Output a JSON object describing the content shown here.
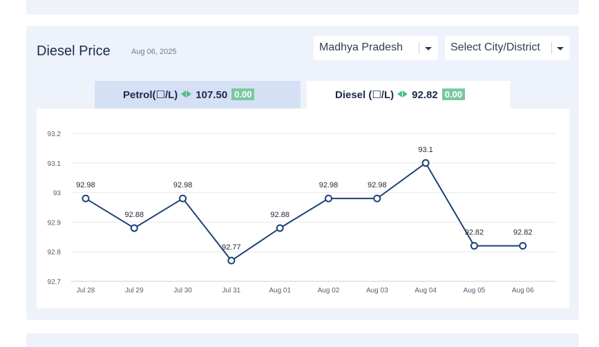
{
  "header": {
    "title": "Diesel Price",
    "date": "Aug 06, 2025"
  },
  "filters": {
    "state_selected": "Madhya Pradesh",
    "city_placeholder": "Select City/District"
  },
  "tabs": {
    "petrol": {
      "label": "Petrol(☐/L)",
      "price": "107.50",
      "change": "0.00"
    },
    "diesel": {
      "label": "Diesel (☐/L)",
      "price": "92.82",
      "change": "0.00"
    }
  },
  "colors": {
    "line": "#1e3f73",
    "grid": "#e6e8ec",
    "change_badge": "#7ac8a0",
    "arrows": "#4cbc8a"
  },
  "icons": {
    "dropdown": "chevron-down-icon",
    "price_change": "left-right-arrows-icon"
  },
  "chart_data": {
    "type": "line",
    "categories": [
      "Jul 28",
      "Jul 29",
      "Jul 30",
      "Jul 31",
      "Aug 01",
      "Aug 02",
      "Aug 03",
      "Aug 04",
      "Aug 05",
      "Aug 06"
    ],
    "values": [
      92.98,
      92.88,
      92.98,
      92.77,
      92.88,
      92.98,
      92.98,
      93.1,
      92.82,
      92.82
    ],
    "data_labels": [
      "92.98",
      "92.88",
      "92.98",
      "92.77",
      "92.88",
      "92.98",
      "92.98",
      "93.1",
      "92.82",
      "92.82"
    ],
    "y_ticks": [
      "92.7",
      "92.8",
      "92.9",
      "93",
      "93.1",
      "93.2"
    ],
    "ylim": [
      92.7,
      93.2
    ],
    "grid": true,
    "markers": "hollow-circle"
  }
}
